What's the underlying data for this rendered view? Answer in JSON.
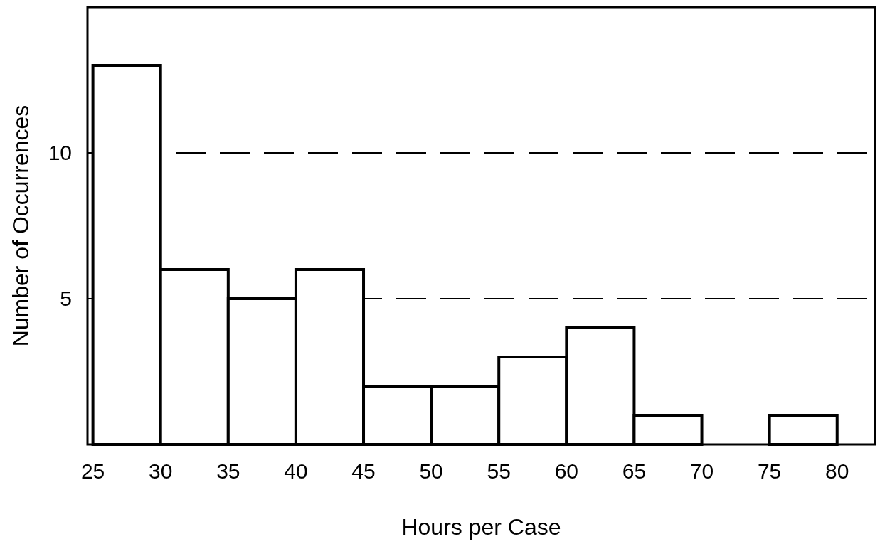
{
  "chart_data": {
    "type": "histogram",
    "xlabel": "Hours per Case",
    "ylabel": "Number of Occurrences",
    "bins": [
      25,
      30,
      35,
      40,
      45,
      50,
      55,
      60,
      65,
      70,
      75,
      80
    ],
    "values": [
      13,
      6,
      5,
      6,
      2,
      2,
      3,
      4,
      1,
      0,
      1
    ],
    "color": "#ffffff",
    "xlim": [
      24.6,
      82.8
    ],
    "xticks": [
      25,
      30,
      35,
      40,
      45,
      50,
      55,
      60,
      65,
      70,
      75,
      80
    ],
    "ylim": [
      0,
      15
    ],
    "yticks": [
      5,
      10
    ],
    "grid": "y",
    "line_style": "dashed"
  }
}
